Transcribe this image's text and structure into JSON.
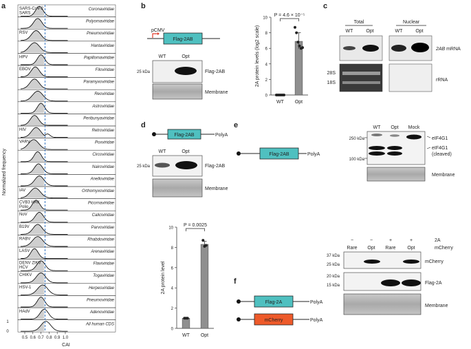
{
  "panel_labels": [
    "a",
    "b",
    "c",
    "d",
    "e",
    "f"
  ],
  "colors": {
    "construct": "#4fc0c0",
    "mcherry": "#ee5a2a",
    "dashed": "#3a78c2",
    "fill": "#cfcfcf",
    "bar": "#8f8f8f"
  },
  "panel_a": {
    "ylabel": "Normalized frequency",
    "xlabel": "CAI",
    "x_ticks": [
      "0.5",
      "0.6",
      "0.7",
      "0.8",
      "0.9",
      "1.0"
    ],
    "y_ticks": [
      "1",
      "0"
    ],
    "rows": [
      {
        "left": "SARS-CoV-2\nSARS",
        "right": "Coronaviridae"
      },
      {
        "left": "",
        "right": "Polyomaviridae"
      },
      {
        "left": "RSV",
        "right": "Pneumoviridae"
      },
      {
        "left": "",
        "right": "Hantaviridae"
      },
      {
        "left": "HPV",
        "right": "Papillomaviridae"
      },
      {
        "left": "EBOV",
        "right": "Filoviridae"
      },
      {
        "left": "",
        "right": "Paramyxoviridae"
      },
      {
        "left": "",
        "right": "Reoviridae"
      },
      {
        "left": "",
        "right": "Astroviridae"
      },
      {
        "left": "",
        "right": "Peribunyaviridae"
      },
      {
        "left": "HIV",
        "right": "Retroviridae"
      },
      {
        "left": "VARV",
        "right": "Poxviridae"
      },
      {
        "left": "",
        "right": "Circoviridae"
      },
      {
        "left": "",
        "right": "Nairoviridae"
      },
      {
        "left": "",
        "right": "Anelloviridae"
      },
      {
        "left": "IAV",
        "right": "Orthomyxoviridae"
      },
      {
        "left": "CVB3 HAV\nPolio",
        "right": "Picornaviridae"
      },
      {
        "left": "NoV",
        "right": "Caliciviridae"
      },
      {
        "left": "B19V",
        "right": "Parvoviridae"
      },
      {
        "left": "RABV",
        "right": "Rhabdoviridae"
      },
      {
        "left": "LASV",
        "right": "Arenaviridae"
      },
      {
        "left": "DENV ZIKV\nHCV",
        "right": "Flaviviridae"
      },
      {
        "left": "CHIKV",
        "right": "Togaviridae"
      },
      {
        "left": "HSV-1",
        "right": "Herpesviridae"
      },
      {
        "left": "",
        "right": "Pneumoviridae"
      },
      {
        "left": "HAdV",
        "right": "Adenoviridae"
      },
      {
        "left": "",
        "right": "All human CDS"
      }
    ]
  },
  "panel_b": {
    "promoter": "pCMV",
    "construct": "Flag-2AB",
    "lanes": [
      "WT",
      "Opt"
    ],
    "size_marker": "25 kDa",
    "band_label": "Flag-2AB",
    "membrane": "Membrane"
  },
  "chart_b": {
    "type": "bar",
    "categories": [
      "WT",
      "Opt"
    ],
    "values": [
      0.0,
      6.9
    ],
    "ylabel": "2A protein levels (log2 scale)",
    "ylim": [
      0,
      10
    ],
    "yticks": [
      "0",
      "2",
      "4",
      "6",
      "8",
      "10"
    ],
    "pvalue": "P = 4.6 × 10⁻⁵",
    "points": {
      "WT": [
        0,
        0,
        0,
        0,
        0,
        0
      ],
      "Opt": [
        8.7,
        8.0,
        6.8,
        6.3,
        6.0,
        6.1
      ]
    }
  },
  "panel_c": {
    "groups": [
      "Total",
      "Nuclear"
    ],
    "lanes": [
      "WT",
      "Opt",
      "WT",
      "Opt"
    ],
    "mrna_label": "2AB mRNA",
    "mrna_suffix": " mRNA",
    "rrna_label": "rRNA",
    "markers": [
      "28S",
      "18S"
    ]
  },
  "panel_d": {
    "construct": "Flag-2AB",
    "polya": "PolyA",
    "lanes": [
      "WT",
      "Opt"
    ],
    "size_marker": "25 kDa",
    "band_label": "Flag-2AB",
    "membrane": "Membrane"
  },
  "chart_d": {
    "type": "bar",
    "categories": [
      "WT",
      "Opt"
    ],
    "values": [
      1.0,
      8.3
    ],
    "ylabel": "2A protein level",
    "ylim": [
      0,
      10
    ],
    "yticks": [
      "0",
      "2",
      "4",
      "6",
      "8",
      "10"
    ],
    "pvalue": "P = 0.0025",
    "points": {
      "WT": [
        1,
        1,
        1
      ],
      "Opt": [
        8.7,
        8.1,
        8.2
      ]
    }
  },
  "panel_e": {
    "construct": "Flag-2AB",
    "polya": "PolyA",
    "lanes": [
      "WT",
      "Opt",
      "Mock"
    ],
    "markers": [
      "250 kDa",
      "100 kDa"
    ],
    "labels": [
      "eIF4G1",
      "eIF4G1",
      "(cleaved)"
    ],
    "membrane": "Membrane"
  },
  "panel_f": {
    "constructs": [
      "Flag-2A",
      "mCherry"
    ],
    "polya": "PolyA",
    "row_2a": {
      "label": "2A",
      "values": [
        "−",
        "−",
        "+",
        "+"
      ]
    },
    "row_mcherry": {
      "label": "mCherry"
    },
    "lanes": [
      "Rare",
      "Opt",
      "Rare",
      "Opt"
    ],
    "markers": [
      "37 kDa",
      "25 kDa",
      "20 kDa",
      "15 kDa"
    ],
    "band_labels": [
      "mCherry",
      "Flag-2A",
      "Membrane"
    ]
  }
}
